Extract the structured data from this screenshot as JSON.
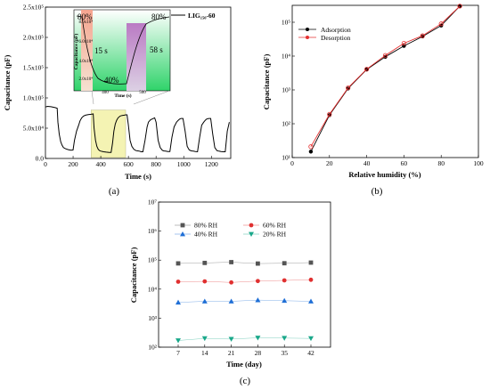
{
  "chart_data": [
    {
      "type": "line",
      "panel": "(a)",
      "xlabel": "Time (s)",
      "ylabel": "Capacitance (pF)",
      "xlim": [
        0,
        1340
      ],
      "ylim": [
        0,
        250000
      ],
      "x_ticks": [
        "0",
        "200",
        "400",
        "600",
        "800",
        "1000",
        "1200"
      ],
      "y_ticks": [
        "0.0",
        "5.0x10⁴",
        "1.0x10⁵",
        "1.5x10⁵",
        "2.0x10⁵",
        "2.5x10⁵"
      ],
      "legend": "LIG₁₅₀-60",
      "legend_position": "top-right",
      "highlight_region_x": [
        330,
        580
      ],
      "series": [
        {
          "name": "LIG₁₅₀-60",
          "color": "#000000",
          "x": [
            0,
            15,
            40,
            70,
            85,
            90,
            100,
            110,
            120,
            130,
            145,
            165,
            185,
            200,
            210,
            225,
            240,
            250,
            262,
            275,
            290,
            310,
            330,
            345,
            352,
            362,
            372,
            382,
            392,
            402,
            420,
            440,
            460,
            475,
            485,
            495,
            505,
            515,
            525,
            540,
            555,
            570,
            580,
            590,
            600,
            612,
            625,
            640,
            655,
            668,
            680,
            692,
            705,
            720,
            735,
            745,
            760,
            780,
            790,
            800,
            815,
            830,
            845,
            855,
            870,
            885,
            900,
            915,
            930,
            948,
            960,
            970,
            980,
            995,
            1010,
            1025,
            1040,
            1055,
            1070,
            1085,
            1100,
            1115,
            1130,
            1145,
            1155,
            1165,
            1180,
            1195,
            1210,
            1225,
            1240,
            1255,
            1270,
            1285,
            1300,
            1315,
            1330
          ],
          "y": [
            85000,
            86000,
            85500,
            84000,
            83000,
            60000,
            40000,
            28000,
            22000,
            18000,
            16000,
            14500,
            13500,
            14000,
            30000,
            45000,
            55000,
            62000,
            67000,
            70000,
            71500,
            72500,
            73000,
            73500,
            50000,
            30000,
            20000,
            15000,
            13000,
            12000,
            11000,
            10500,
            10000,
            10000,
            25000,
            45000,
            57000,
            63000,
            67000,
            70000,
            71000,
            71500,
            72000,
            72000,
            55000,
            30000,
            20000,
            15000,
            13000,
            12500,
            12000,
            11000,
            11000,
            30000,
            52000,
            60000,
            64000,
            66000,
            67000,
            60000,
            30000,
            18000,
            13500,
            12500,
            12000,
            11500,
            11500,
            35000,
            52000,
            60000,
            63000,
            65000,
            66000,
            66000,
            45000,
            20000,
            14000,
            12500,
            12000,
            11500,
            11000,
            35000,
            55000,
            60000,
            63000,
            65000,
            66000,
            66000,
            40000,
            18000,
            13000,
            12000,
            11500,
            11000,
            11000,
            45000,
            60000
          ]
        }
      ],
      "inset": {
        "xlabel": "Time (s)",
        "ylabel": "Capacitance (pF)",
        "x_ticks": [
          "400",
          "500"
        ],
        "y_ticks": [
          "2.0x10⁴",
          "4.0x10⁴",
          "6.0x10⁴",
          "8.0x10⁴"
        ],
        "annotations": [
          "80%",
          "15 s",
          "40%",
          "58 s",
          "80%"
        ]
      }
    },
    {
      "type": "line",
      "panel": "(b)",
      "xlabel": "Relative humidity (%)",
      "ylabel": "Capacitance (pF)",
      "xlim": [
        0,
        100
      ],
      "ylog": true,
      "ylim_exp": [
        1,
        5.5
      ],
      "x_ticks": [
        "0",
        "20",
        "40",
        "60",
        "80",
        "100"
      ],
      "y_ticks": [
        "10¹",
        "10²",
        "10³",
        "10⁴",
        "10⁵"
      ],
      "legend_position": "top-left",
      "series": [
        {
          "name": "Adsorption",
          "color": "#000000",
          "x": [
            10,
            20,
            30,
            40,
            50,
            60,
            70,
            80,
            90
          ],
          "y": [
            15,
            180,
            1100,
            4000,
            9500,
            20000,
            38000,
            80000,
            300000
          ]
        },
        {
          "name": "Desorption",
          "color": "#e53030",
          "x": [
            10,
            20,
            30,
            40,
            50,
            60,
            70,
            80,
            90
          ],
          "y": [
            21,
            190,
            1150,
            4100,
            10500,
            24000,
            40000,
            90000,
            300000
          ]
        }
      ]
    },
    {
      "type": "scatter",
      "panel": "(c)",
      "xlabel": "Time (day)",
      "ylabel": "Capacitance (pF)",
      "ylog": true,
      "ylim_exp": [
        2,
        7
      ],
      "categories": [
        "7",
        "14",
        "21",
        "28",
        "35",
        "42"
      ],
      "y_ticks": [
        "10²",
        "10³",
        "10⁴",
        "10⁵",
        "10⁶",
        "10⁷"
      ],
      "legend_position": "top",
      "series": [
        {
          "name": "80% RH",
          "color": "#555555",
          "marker": "square",
          "values": [
            77000,
            80000,
            85000,
            76000,
            78000,
            82000
          ]
        },
        {
          "name": "60% RH",
          "color": "#e03030",
          "marker": "circle",
          "values": [
            18000,
            18500,
            17000,
            19000,
            20000,
            21000
          ]
        },
        {
          "name": "40% RH",
          "color": "#1f6fd6",
          "marker": "triangle-up",
          "values": [
            3500,
            3800,
            3800,
            4200,
            4000,
            3800
          ]
        },
        {
          "name": "20% RH",
          "color": "#1aa88a",
          "marker": "triangle-down",
          "values": [
            170,
            200,
            190,
            210,
            205,
            200
          ]
        }
      ]
    }
  ]
}
